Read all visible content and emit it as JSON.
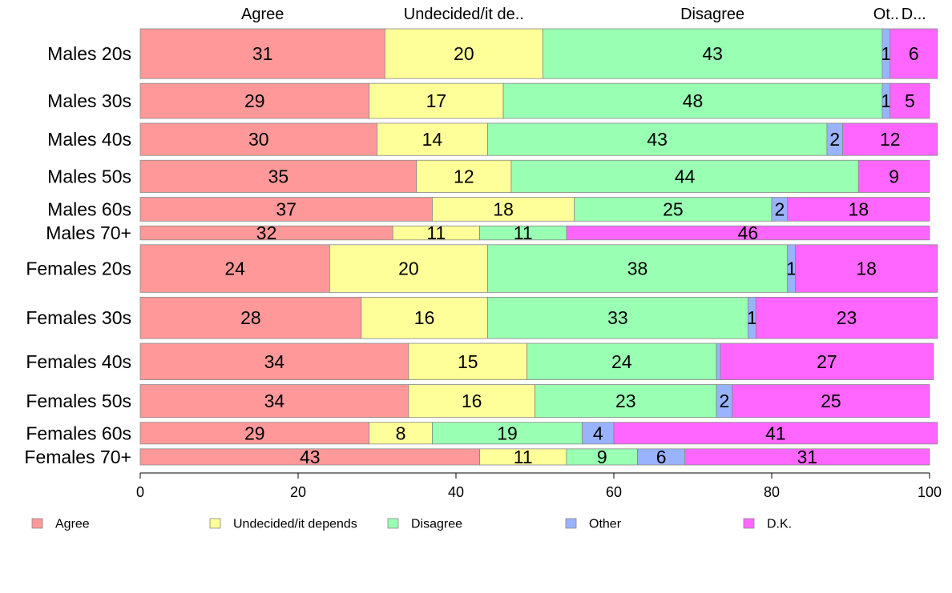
{
  "chart_data": {
    "type": "bar",
    "orientation": "horizontal",
    "stacked": true,
    "categories": [
      "Males 20s",
      "Males 30s",
      "Males 40s",
      "Males 50s",
      "Males 60s",
      "Males 70+",
      "Females 20s",
      "Females 30s",
      "Females 40s",
      "Females 50s",
      "Females 60s",
      "Females 70+"
    ],
    "row_weights": [
      71,
      50,
      46,
      46,
      34,
      20,
      68,
      59,
      52,
      47,
      31,
      23
    ],
    "series": [
      {
        "name": "Agree",
        "color": "#ff9999",
        "values": [
          31,
          29,
          30,
          35,
          37,
          32,
          24,
          28,
          34,
          34,
          29,
          43
        ]
      },
      {
        "name": "Undecided/it depends",
        "color": "#ffff99",
        "values": [
          20,
          17,
          14,
          12,
          18,
          11,
          20,
          16,
          15,
          16,
          8,
          11
        ]
      },
      {
        "name": "Disagree",
        "color": "#99ffb3",
        "values": [
          43,
          48,
          43,
          44,
          25,
          11,
          38,
          33,
          24,
          23,
          19,
          9
        ]
      },
      {
        "name": "Other",
        "color": "#99b3ff",
        "values": [
          1,
          1,
          2,
          0,
          2,
          0,
          1,
          1,
          0.5,
          2,
          4,
          6
        ]
      },
      {
        "name": "D.K.",
        "color": "#ff66ff",
        "values": [
          6,
          5,
          12,
          9,
          18,
          46,
          18,
          23,
          27,
          25,
          41,
          31
        ]
      }
    ],
    "segment_labels": [
      [
        "31",
        "20",
        "43",
        "1",
        "6"
      ],
      [
        "29",
        "17",
        "48",
        "1",
        "5"
      ],
      [
        "30",
        "14",
        "43",
        "2",
        "12"
      ],
      [
        "35",
        "12",
        "44",
        "",
        "9"
      ],
      [
        "37",
        "18",
        "25",
        "2",
        "18"
      ],
      [
        "32",
        "11",
        "11",
        "",
        "46"
      ],
      [
        "24",
        "20",
        "38",
        "1",
        "18"
      ],
      [
        "28",
        "16",
        "33",
        "1",
        "23"
      ],
      [
        "34",
        "15",
        "24",
        "",
        "27"
      ],
      [
        "34",
        "16",
        "23",
        "2",
        "25"
      ],
      [
        "29",
        "8",
        "19",
        "4",
        "41"
      ],
      [
        "43",
        "11",
        "9",
        "6",
        "31"
      ]
    ],
    "top_labels": [
      "Agree",
      "Undecided/it de..",
      "Disagree",
      "Ot..",
      "D..."
    ],
    "xlim": [
      0,
      100
    ],
    "xticks": [
      0,
      20,
      40,
      60,
      80,
      100
    ],
    "xtick_labels": [
      "0",
      "20",
      "40",
      "60",
      "80",
      "100"
    ],
    "legend": {
      "placement": "bottom",
      "entries": [
        "Agree",
        "Undecided/it depends",
        "Disagree",
        "Other",
        "D.K."
      ]
    },
    "grid": false
  }
}
